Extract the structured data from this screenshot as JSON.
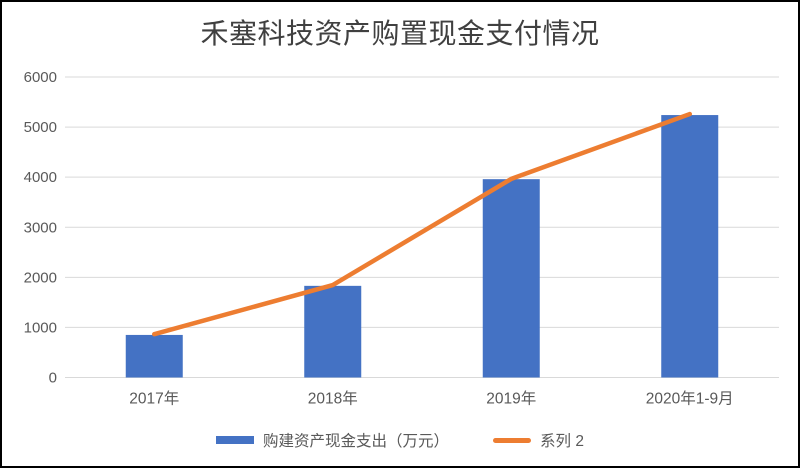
{
  "chart_data": {
    "type": "bar",
    "title": "禾塞科技资产购置现金支付情况",
    "categories": [
      "2017年",
      "2018年",
      "2019年",
      "2020年1-9月"
    ],
    "series": [
      {
        "name": "购建资产现金支出（万元）",
        "type": "bar",
        "color": "#4472C4",
        "values": [
          850,
          1830,
          3960,
          5240
        ]
      },
      {
        "name": "系列 2",
        "type": "line",
        "color": "#ED7D31",
        "values": [
          865,
          1845,
          3965,
          5260
        ]
      }
    ],
    "xlabel": "",
    "ylabel": "",
    "ylim": [
      0,
      6000
    ],
    "yticks": [
      0,
      1000,
      2000,
      3000,
      4000,
      5000,
      6000
    ],
    "grid": true,
    "gridline_color": "#D9D9D9",
    "legend_position": "bottom"
  },
  "frame": {
    "border_color": "#000000",
    "background_color": "#FFFFFF",
    "title_color": "#404040",
    "axis_text_color": "#595959"
  }
}
